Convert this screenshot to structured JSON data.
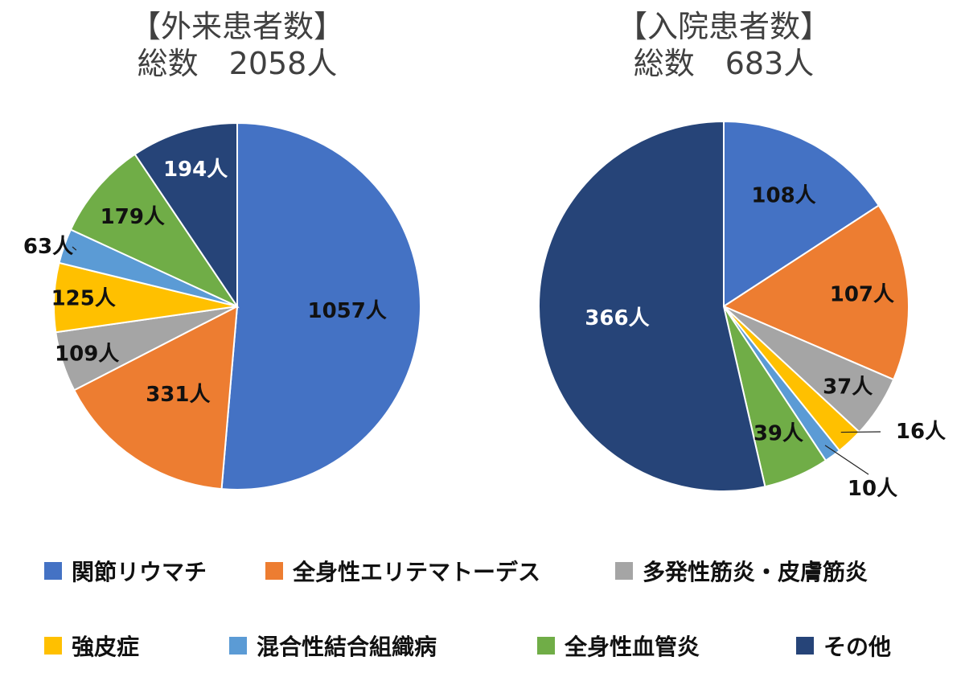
{
  "chart_data": [
    {
      "type": "pie",
      "title": "【外来患者数】",
      "subtitle": "総数　2058人",
      "categories": [
        "関節リウマチ",
        "全身性エリテマトーデス",
        "多発性筋炎・皮膚筋炎",
        "強皮症",
        "混合性結合組織病",
        "全身性血管炎",
        "その他"
      ],
      "values": [
        1057,
        331,
        109,
        125,
        63,
        179,
        194
      ],
      "labels": [
        "1057人",
        "331人",
        "109人",
        "125人",
        "63人",
        "179人",
        "194人"
      ],
      "colors": [
        "#4472C4",
        "#ED7D31",
        "#A5A5A5",
        "#FFC000",
        "#5B9BD5",
        "#70AD47",
        "#264478"
      ]
    },
    {
      "type": "pie",
      "title": "【入院患者数】",
      "subtitle": "総数　683人",
      "categories": [
        "関節リウマチ",
        "全身性エリテマトーデス",
        "多発性筋炎・皮膚筋炎",
        "強皮症",
        "混合性結合組織病",
        "全身性血管炎",
        "その他"
      ],
      "values": [
        108,
        107,
        37,
        16,
        10,
        39,
        366
      ],
      "labels": [
        "108人",
        "107人",
        "37人",
        "16人",
        "10人",
        "39人",
        "366人"
      ],
      "colors": [
        "#4472C4",
        "#ED7D31",
        "#A5A5A5",
        "#FFC000",
        "#5B9BD5",
        "#70AD47",
        "#264478"
      ]
    }
  ],
  "legend": {
    "placement": "bottom",
    "items": [
      {
        "label": "関節リウマチ",
        "color": "#4472C4"
      },
      {
        "label": "全身性エリテマトーデス",
        "color": "#ED7D31"
      },
      {
        "label": "多発性筋炎・皮膚筋炎",
        "color": "#A5A5A5"
      },
      {
        "label": "強皮症",
        "color": "#FFC000"
      },
      {
        "label": "混合性結合組織病",
        "color": "#5B9BD5"
      },
      {
        "label": "全身性血管炎",
        "color": "#70AD47"
      },
      {
        "label": "その他",
        "color": "#264478"
      }
    ]
  }
}
